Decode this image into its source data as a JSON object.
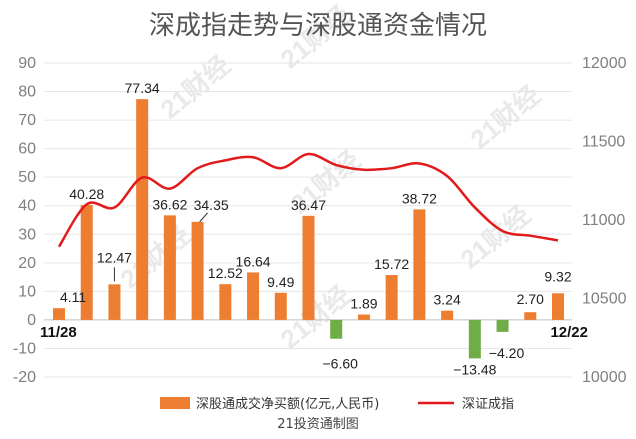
{
  "chart_data": {
    "type": "bar",
    "title": "深成指走势与深股通资金情况",
    "source": "21投资通制图",
    "watermark": "21财经",
    "left_axis": {
      "ylim": [
        -20,
        90
      ],
      "ticks": [
        -20,
        -10,
        0,
        10,
        20,
        30,
        40,
        50,
        60,
        70,
        80,
        90
      ]
    },
    "right_axis": {
      "ylim": [
        10000,
        12000
      ],
      "ticks": [
        10000,
        10500,
        11000,
        11500,
        12000
      ]
    },
    "x_start_label": "11/28",
    "x_end_label": "12/22",
    "series": [
      {
        "name": "深股通成交净买额(亿元,人民币)",
        "type": "bar",
        "positive_color": "#ed7d31",
        "negative_color": "#70ad47",
        "values": [
          4.11,
          40.28,
          12.47,
          77.34,
          36.62,
          34.35,
          12.52,
          16.64,
          9.49,
          36.47,
          -6.6,
          1.89,
          15.72,
          38.72,
          3.24,
          -13.48,
          -4.2,
          2.7,
          9.32
        ],
        "labels": [
          "4.11",
          "40.28",
          "12.47",
          "77.34",
          "36.62",
          "34.35",
          "12.52",
          "16.64",
          "9.49",
          "36.47",
          "−6.60",
          "1.89",
          "15.72",
          "38.72",
          "3.24",
          "−13.48",
          "−4.20",
          "2.70",
          "9.32"
        ]
      },
      {
        "name": "深证成指",
        "type": "line",
        "color": "#e31a1c",
        "values": [
          10830,
          11100,
          11080,
          11270,
          11200,
          11330,
          11380,
          11400,
          11330,
          11420,
          11350,
          11320,
          11330,
          11360,
          11280,
          11080,
          10930,
          10900,
          10870
        ]
      }
    ]
  }
}
